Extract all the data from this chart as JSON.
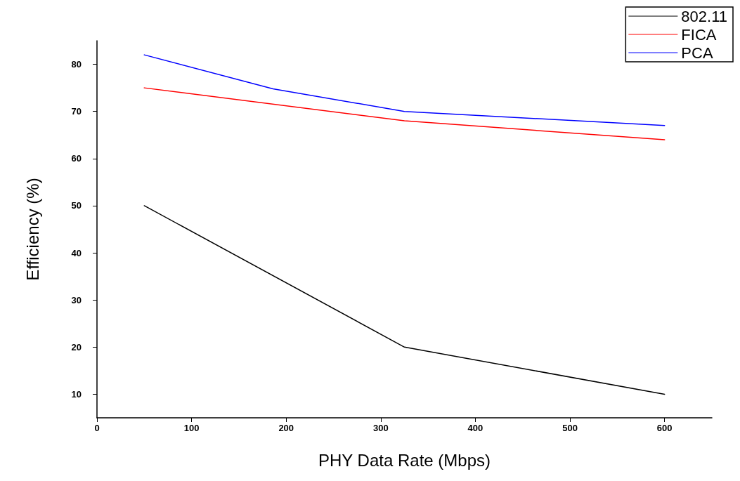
{
  "chart_data": {
    "type": "line",
    "xlabel": "PHY Data Rate (Mbps)",
    "ylabel": "Efficiency (%)",
    "xlim": [
      0,
      650
    ],
    "xticks": [
      0,
      100,
      200,
      300,
      400,
      500,
      600
    ],
    "ylim": [
      5,
      85
    ],
    "yticks": [
      10,
      20,
      30,
      40,
      50,
      60,
      70,
      80
    ],
    "grid": false,
    "legend": "top right",
    "marker": "none",
    "line_style": "solid",
    "series": [
      {
        "name": "802.11",
        "color": "#000000",
        "x": [
          50,
          325,
          600
        ],
        "values": [
          50,
          20,
          10
        ]
      },
      {
        "name": "FICA",
        "color": "#ff0000",
        "x": [
          50,
          325,
          600
        ],
        "values": [
          75,
          68,
          64
        ]
      },
      {
        "name": "PCA",
        "color": "#0000ff",
        "x": [
          50,
          186,
          325,
          600
        ],
        "values": [
          82,
          74.8,
          70,
          67
        ]
      }
    ]
  }
}
